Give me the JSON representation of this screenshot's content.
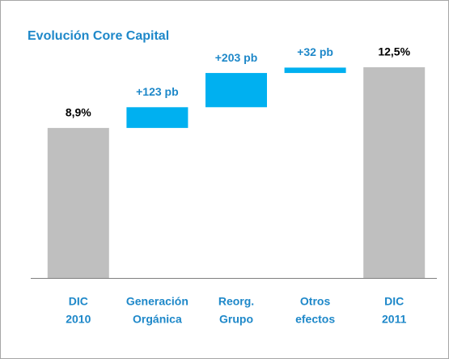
{
  "chart_data": {
    "type": "waterfall",
    "title": "Evolución Core Capital",
    "categories": [
      [
        "DIC",
        "2010"
      ],
      [
        "Generación",
        "Orgánica"
      ],
      [
        "Reorg.",
        "Grupo"
      ],
      [
        "Otros",
        "efectos"
      ],
      [
        "DIC",
        "2011"
      ]
    ],
    "values": [
      8.9,
      123,
      203,
      32,
      12.5
    ],
    "value_labels": [
      "8,9%",
      "+123 pb",
      "+203 pb",
      "+32 pb",
      "12,5%"
    ],
    "total_color": "#bfbfbf",
    "delta_color": "#00b0f0"
  }
}
